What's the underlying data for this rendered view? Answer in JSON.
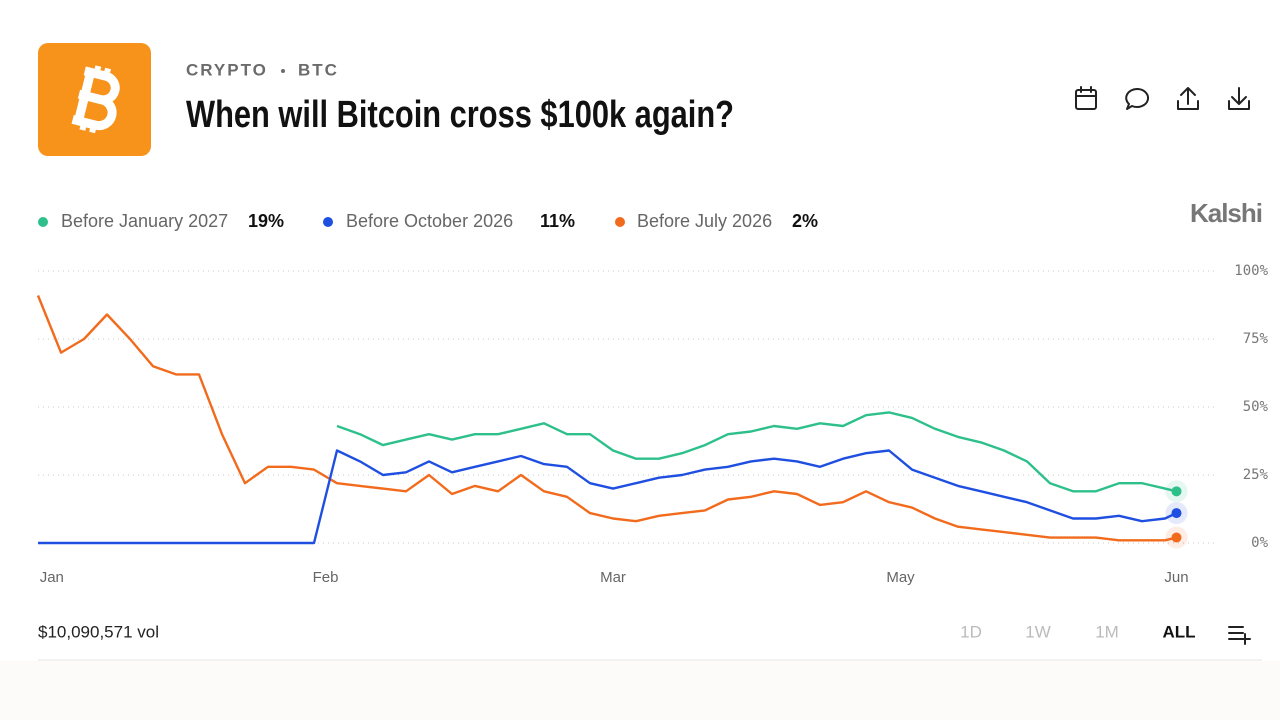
{
  "header": {
    "category": "CRYPTO",
    "ticker": "BTC",
    "title": "When will Bitcoin cross $100k again?"
  },
  "brand": "Kalshi",
  "volume": "$10,090,571 vol",
  "ranges": [
    "1D",
    "1W",
    "1M",
    "ALL"
  ],
  "selected_range": "ALL",
  "chart_data": {
    "type": "line",
    "x": [
      0,
      2,
      4,
      6,
      8,
      10,
      12,
      14,
      16,
      18,
      20,
      22,
      24,
      26,
      28,
      30,
      32,
      34,
      36,
      38,
      40,
      42,
      44,
      46,
      48,
      50,
      52,
      54,
      56,
      58,
      60,
      62,
      64,
      66,
      68,
      70,
      72,
      74,
      76,
      78,
      80,
      82,
      84,
      86,
      88,
      90,
      92,
      94,
      96,
      98,
      99
    ],
    "xlim": [
      0,
      100
    ],
    "xticks": [
      {
        "value": 1.2,
        "label": "Jan"
      },
      {
        "value": 25,
        "label": "Feb"
      },
      {
        "value": 50,
        "label": "Mar"
      },
      {
        "value": 75,
        "label": "May"
      },
      {
        "value": 99,
        "label": "Jun"
      }
    ],
    "ylim": [
      0,
      100
    ],
    "yticks": [
      {
        "value": 0,
        "label": "0%"
      },
      {
        "value": 25,
        "label": "25%"
      },
      {
        "value": 50,
        "label": "50%"
      },
      {
        "value": 75,
        "label": "75%"
      },
      {
        "value": 100,
        "label": "100%"
      }
    ],
    "grid": true,
    "series": [
      {
        "name": "Before January 2027",
        "chance": "19%",
        "color": "#2ec08b",
        "values": [
          null,
          null,
          null,
          null,
          null,
          null,
          null,
          null,
          null,
          null,
          null,
          null,
          null,
          43,
          40,
          36,
          38,
          40,
          38,
          40,
          40,
          42,
          44,
          40,
          40,
          34,
          31,
          31,
          33,
          36,
          40,
          41,
          43,
          42,
          44,
          43,
          47,
          48,
          46,
          42,
          39,
          37,
          34,
          30,
          22,
          19,
          19,
          22,
          22,
          20,
          19
        ]
      },
      {
        "name": "Before October 2026",
        "chance": "11%",
        "color": "#1f4fe0",
        "values": [
          0,
          0,
          0,
          0,
          0,
          0,
          0,
          0,
          0,
          0,
          0,
          0,
          0,
          34,
          30,
          25,
          26,
          30,
          26,
          28,
          30,
          32,
          29,
          28,
          22,
          20,
          22,
          24,
          25,
          27,
          28,
          30,
          31,
          30,
          28,
          31,
          33,
          34,
          27,
          24,
          21,
          19,
          17,
          15,
          12,
          9,
          9,
          10,
          8,
          9,
          11
        ]
      },
      {
        "name": "Before July 2026",
        "chance": "2%",
        "color": "#f26b1d",
        "values": [
          91,
          70,
          75,
          84,
          75,
          65,
          62,
          62,
          40,
          22,
          28,
          28,
          27,
          22,
          21,
          20,
          19,
          25,
          18,
          21,
          19,
          25,
          19,
          17,
          11,
          9,
          8,
          10,
          11,
          12,
          16,
          17,
          19,
          18,
          14,
          15,
          19,
          15,
          13,
          9,
          6,
          5,
          4,
          3,
          2,
          2,
          2,
          1,
          1,
          1,
          2
        ]
      }
    ]
  }
}
